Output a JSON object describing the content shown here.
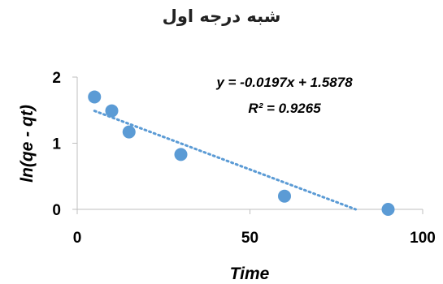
{
  "chart_data": {
    "type": "scatter",
    "title": "شبه درجه اول",
    "xlabel": "Time",
    "ylabel": "ln(qe - qt)",
    "xlim": [
      0,
      100
    ],
    "ylim": [
      0,
      2
    ],
    "x_ticks": [
      "0",
      "50",
      "100"
    ],
    "y_ticks": [
      "0",
      "1",
      "2"
    ],
    "grid": false,
    "series": [
      {
        "x": [
          5,
          10,
          15,
          30,
          60,
          90
        ],
        "y": [
          1.7,
          1.49,
          1.17,
          0.83,
          0.2,
          0.0
        ],
        "color": "#5B9BD5"
      }
    ],
    "trendline": {
      "type": "linear",
      "slope": -0.0197,
      "intercept": 1.5878,
      "x_range": [
        5,
        90
      ],
      "style": "dotted",
      "color": "#5B9BD5",
      "equation": "y = -0.0197x + 1.5878",
      "r_squared": "R² = 0.9265"
    }
  }
}
